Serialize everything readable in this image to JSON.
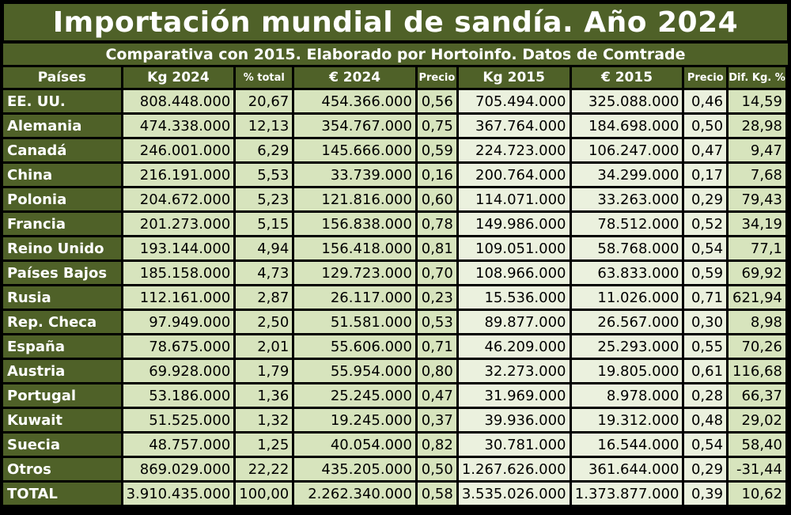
{
  "title": "Importación mundial de sandía. Año 2024",
  "subtitle": "Comparativa con 2015. Elaborado por Hortoinfo. Datos de Comtrade",
  "headers": [
    "Países",
    "Kg 2024",
    "% total",
    "€ 2024",
    "Precio",
    "Kg 2015",
    "€ 2015",
    "Precio",
    "Dif. Kg. %"
  ],
  "rows": [
    [
      "EE. UU.",
      "808.448.000",
      "20,67",
      "454.366.000",
      "0,56",
      "705.494.000",
      "325.088.000",
      "0,46",
      "14,59"
    ],
    [
      "Alemania",
      "474.338.000",
      "12,13",
      "354.767.000",
      "0,75",
      "367.764.000",
      "184.698.000",
      "0,50",
      "28,98"
    ],
    [
      "Canadá",
      "246.001.000",
      "6,29",
      "145.666.000",
      "0,59",
      "224.723.000",
      "106.247.000",
      "0,47",
      "9,47"
    ],
    [
      "China",
      "216.191.000",
      "5,53",
      "33.739.000",
      "0,16",
      "200.764.000",
      "34.299.000",
      "0,17",
      "7,68"
    ],
    [
      "Polonia",
      "204.672.000",
      "5,23",
      "121.816.000",
      "0,60",
      "114.071.000",
      "33.263.000",
      "0,29",
      "79,43"
    ],
    [
      "Francia",
      "201.273.000",
      "5,15",
      "156.838.000",
      "0,78",
      "149.986.000",
      "78.512.000",
      "0,52",
      "34,19"
    ],
    [
      "Reino Unido",
      "193.144.000",
      "4,94",
      "156.418.000",
      "0,81",
      "109.051.000",
      "58.768.000",
      "0,54",
      "77,1"
    ],
    [
      "Países Bajos",
      "185.158.000",
      "4,73",
      "129.723.000",
      "0,70",
      "108.966.000",
      "63.833.000",
      "0,59",
      "69,92"
    ],
    [
      "Rusia",
      "112.161.000",
      "2,87",
      "26.117.000",
      "0,23",
      "15.536.000",
      "11.026.000",
      "0,71",
      "621,94"
    ],
    [
      "Rep. Checa",
      "97.949.000",
      "2,50",
      "51.581.000",
      "0,53",
      "89.877.000",
      "26.567.000",
      "0,30",
      "8,98"
    ],
    [
      "España",
      "78.675.000",
      "2,01",
      "55.606.000",
      "0,71",
      "46.209.000",
      "25.293.000",
      "0,55",
      "70,26"
    ],
    [
      "Austria",
      "69.928.000",
      "1,79",
      "55.954.000",
      "0,80",
      "32.273.000",
      "19.805.000",
      "0,61",
      "116,68"
    ],
    [
      "Portugal",
      "53.186.000",
      "1,36",
      "25.245.000",
      "0,47",
      "31.969.000",
      "8.978.000",
      "0,28",
      "66,37"
    ],
    [
      "Kuwait",
      "51.525.000",
      "1,32",
      "19.245.000",
      "0,37",
      "39.936.000",
      "19.312.000",
      "0,48",
      "29,02"
    ],
    [
      "Suecia",
      "48.757.000",
      "1,25",
      "40.054.000",
      "0,82",
      "30.781.000",
      "16.544.000",
      "0,54",
      "58,40"
    ],
    [
      "Otros",
      "869.029.000",
      "22,22",
      "435.205.000",
      "0,50",
      "1.267.626.000",
      "361.644.000",
      "0,29",
      "-31,44"
    ],
    [
      "TOTAL",
      "3.910.435.000",
      "100,00",
      "2.262.340.000",
      "0,58",
      "3.535.026.000",
      "1.373.877.000",
      "0,39",
      "10,62"
    ]
  ],
  "colors": {
    "header_green": "#4f6128",
    "cell_2024": "#d7e4bd",
    "cell_2015": "#ebf1de"
  }
}
